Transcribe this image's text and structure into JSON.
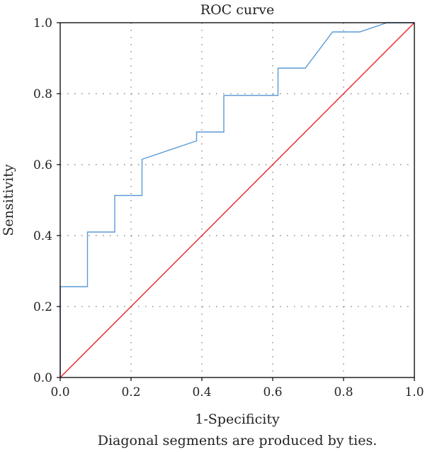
{
  "chart_data": {
    "type": "line",
    "title": "ROC curve",
    "xlabel": "1-Specificity",
    "ylabel": "Sensitivity",
    "footnote": "Diagonal segments are produced by ties.",
    "xlim": [
      0.0,
      1.0
    ],
    "ylim": [
      0.0,
      1.0
    ],
    "x_ticks": [
      "0.0",
      "0.2",
      "0.4",
      "0.6",
      "0.8",
      "1.0"
    ],
    "y_ticks": [
      "0.0",
      "0.2",
      "0.4",
      "0.6",
      "0.8",
      "1.0"
    ],
    "grid": "dotted",
    "series": [
      {
        "color": "#5b9bd5",
        "x": [
          0.0,
          0.0,
          0.077,
          0.077,
          0.154,
          0.154,
          0.231,
          0.231,
          0.385,
          0.385,
          0.462,
          0.462,
          0.615,
          0.615,
          0.692,
          0.769,
          0.846,
          0.923,
          1.0
        ],
        "y": [
          0.0,
          0.256,
          0.256,
          0.41,
          0.41,
          0.513,
          0.513,
          0.615,
          0.667,
          0.692,
          0.692,
          0.795,
          0.795,
          0.872,
          0.872,
          0.974,
          0.974,
          1.0,
          1.0
        ]
      },
      {
        "color": "#e8262b",
        "x": [
          0.0,
          1.0
        ],
        "y": [
          0.0,
          1.0
        ]
      }
    ]
  }
}
